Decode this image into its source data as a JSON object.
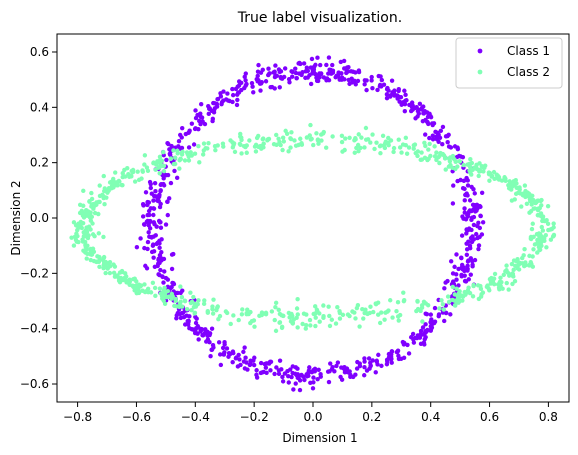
{
  "chart_data": {
    "type": "scatter",
    "title": "True label visualization.",
    "xlabel": "Dimension 1",
    "ylabel": "Dimension 2",
    "xlim": [
      -0.87,
      0.87
    ],
    "ylim": [
      -0.665,
      0.665
    ],
    "x_ticks": [
      -0.8,
      -0.6,
      -0.4,
      -0.2,
      0.0,
      0.2,
      0.4,
      0.6,
      0.8
    ],
    "x_tick_labels": [
      "−0.8",
      "−0.6",
      "−0.4",
      "−0.2",
      "0.0",
      "0.2",
      "0.4",
      "0.6",
      "0.8"
    ],
    "y_ticks": [
      -0.6,
      -0.4,
      -0.2,
      0.0,
      0.2,
      0.4,
      0.6
    ],
    "y_tick_labels": [
      "−0.6",
      "−0.4",
      "−0.2",
      "0.0",
      "0.2",
      "0.4",
      "0.6"
    ],
    "grid": false,
    "legend_position": "top-right",
    "series": [
      {
        "name": "Class 1",
        "color": "#8000ff",
        "shape": "ring",
        "center": [
          0.0,
          -0.02
        ],
        "radius_x": 0.54,
        "radius_y": 0.55,
        "noise": 0.022,
        "count": 900
      },
      {
        "name": "Class 2",
        "color": "#80ffb4",
        "shape": "ring",
        "center": [
          0.0,
          -0.04
        ],
        "radius_x": 0.78,
        "radius_y": 0.32,
        "noise": 0.022,
        "count": 900
      }
    ]
  }
}
